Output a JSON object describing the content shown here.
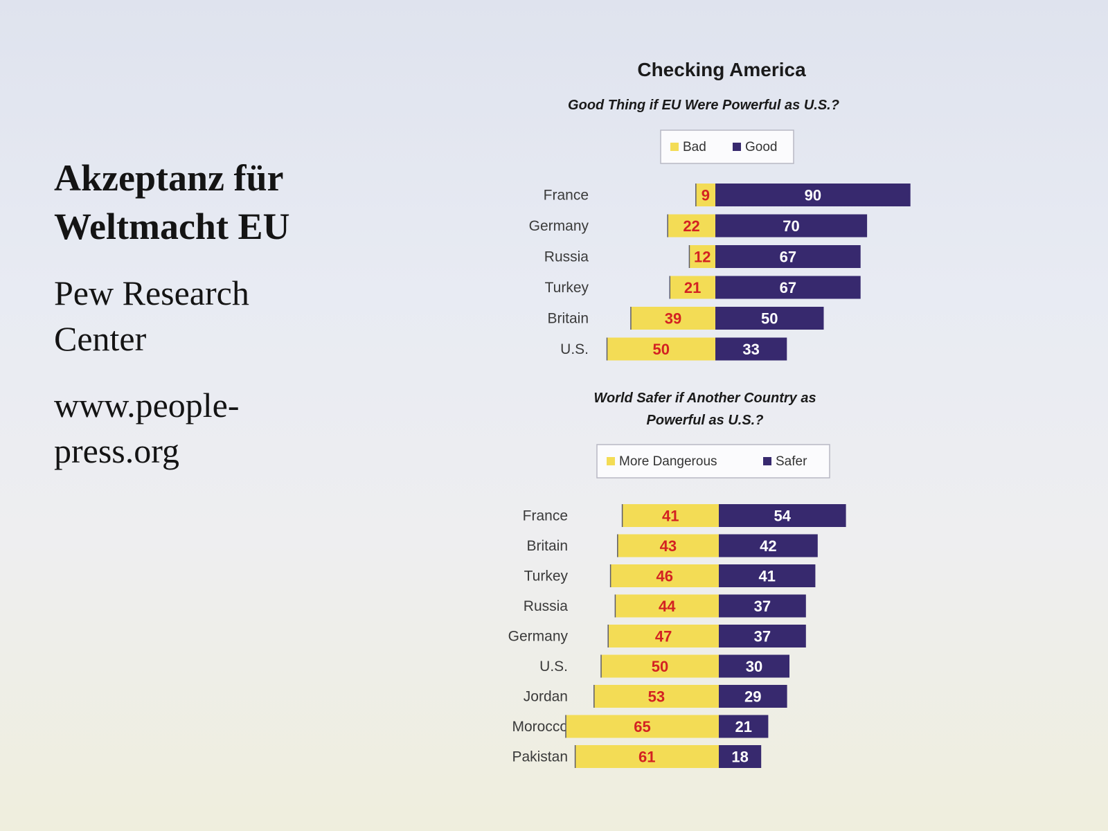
{
  "slide": {
    "title_line1": "Akzeptanz für",
    "title_line2": "Weltmacht EU",
    "source_line1": "Pew Research",
    "source_line2": "Center",
    "url_line1": "www.people-",
    "url_line2": "press.org"
  },
  "colors": {
    "negative": "#f3dc55",
    "positive": "#37296e",
    "negative_label": "#d32222",
    "positive_label": "#ffffff"
  },
  "chart_data": [
    {
      "type": "bar",
      "orientation": "horizontal-diverging",
      "title": "Checking America",
      "subtitle": "Good Thing if EU Were Powerful as U.S.?",
      "legend": {
        "placement": "top",
        "entries": [
          "Bad",
          "Good"
        ]
      },
      "categories": [
        "France",
        "Germany",
        "Russia",
        "Turkey",
        "Britain",
        "U.S."
      ],
      "series": [
        {
          "name": "Bad",
          "values": [
            9,
            22,
            12,
            21,
            39,
            50
          ]
        },
        {
          "name": "Good",
          "values": [
            90,
            70,
            67,
            67,
            50,
            33
          ]
        }
      ],
      "grid": false
    },
    {
      "type": "bar",
      "orientation": "horizontal-diverging",
      "subtitle_line1": "World Safer if Another Country as",
      "subtitle_line2": "Powerful as U.S.?",
      "legend": {
        "placement": "top",
        "entries": [
          "More Dangerous",
          "Safer"
        ]
      },
      "categories": [
        "France",
        "Britain",
        "Turkey",
        "Russia",
        "Germany",
        "U.S.",
        "Jordan",
        "Morocco",
        "Pakistan"
      ],
      "series": [
        {
          "name": "More Dangerous",
          "values": [
            41,
            43,
            46,
            44,
            47,
            50,
            53,
            65,
            61
          ]
        },
        {
          "name": "Safer",
          "values": [
            54,
            42,
            41,
            37,
            37,
            30,
            29,
            21,
            18
          ]
        }
      ],
      "grid": false
    }
  ]
}
